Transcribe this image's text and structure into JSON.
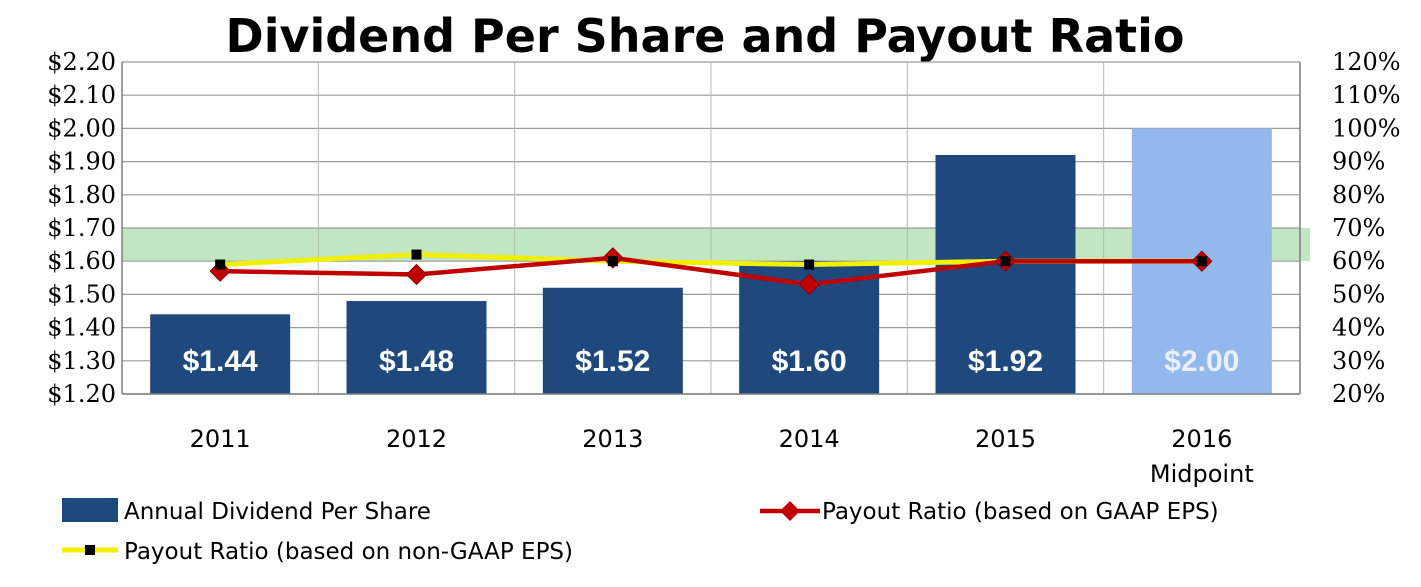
{
  "chart_data": {
    "type": "bar",
    "title": "Dividend Per Share and Payout Ratio",
    "categories": [
      [
        "2011"
      ],
      [
        "2012"
      ],
      [
        "2013"
      ],
      [
        "2014"
      ],
      [
        "2015"
      ],
      [
        "2016",
        "Midpoint"
      ]
    ],
    "y_left": {
      "min": 1.2,
      "max": 2.2,
      "step": 0.1,
      "ticks": [
        "$1.20",
        "$1.30",
        "$1.40",
        "$1.50",
        "$1.60",
        "$1.70",
        "$1.80",
        "$1.90",
        "$2.00",
        "$2.10",
        "$2.20"
      ]
    },
    "y_right": {
      "min": 20,
      "max": 120,
      "step": 10,
      "unit": "%",
      "ticks": [
        "20%",
        "30%",
        "40%",
        "50%",
        "60%",
        "70%",
        "80%",
        "90%",
        "100%",
        "110%",
        "120%"
      ]
    },
    "target_band": {
      "from": 60,
      "to": 70,
      "color": "#90d090"
    },
    "grid": true,
    "series": [
      {
        "name": "Annual Dividend Per Share",
        "kind": "bar",
        "axis": "left",
        "values": [
          1.44,
          1.48,
          1.52,
          1.6,
          1.92,
          2.0
        ],
        "data_labels": [
          "$1.44",
          "$1.48",
          "$1.52",
          "$1.60",
          "$1.92",
          "$2.00"
        ],
        "colors": [
          "#1f497d",
          "#1f497d",
          "#1f497d",
          "#1f497d",
          "#1f497d",
          "#93b9ec"
        ]
      },
      {
        "name": "Payout Ratio (based on GAAP EPS)",
        "kind": "line",
        "axis": "right",
        "marker": "diamond",
        "color": "#c00000",
        "values": [
          57,
          56,
          61,
          53,
          60,
          60
        ]
      },
      {
        "name": "Payout Ratio (based on non-GAAP EPS)",
        "kind": "line",
        "axis": "right",
        "marker": "square",
        "color": "#f0f000",
        "values": [
          59,
          62,
          60,
          59,
          60,
          60
        ]
      }
    ],
    "legend": "bottom"
  }
}
